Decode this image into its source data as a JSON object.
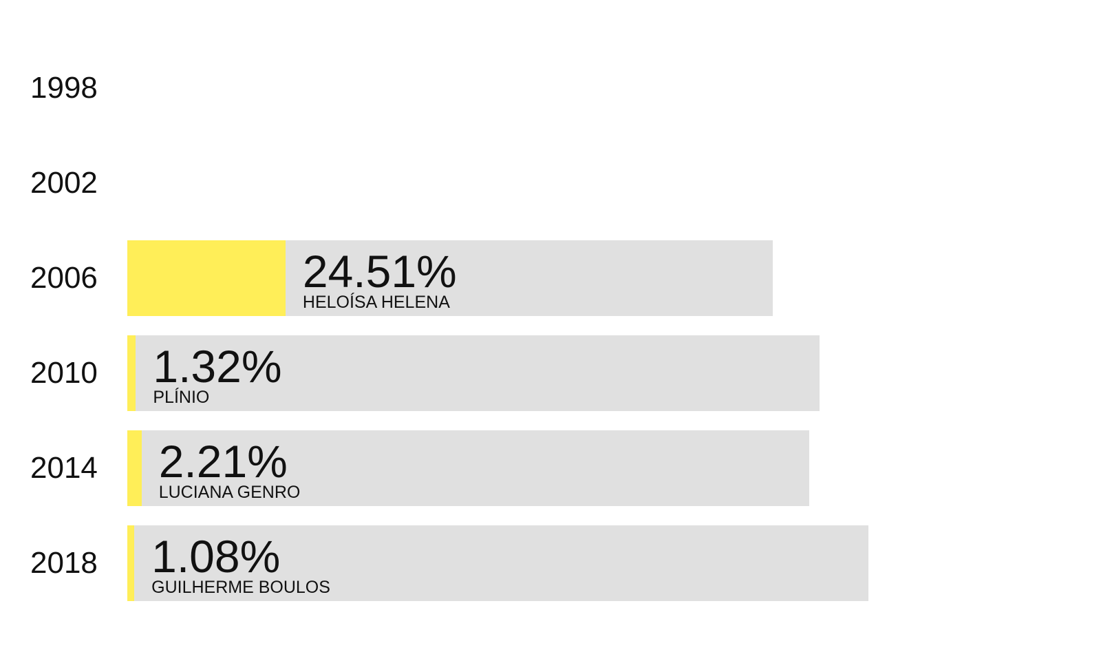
{
  "chart_data": {
    "type": "bar",
    "orientation": "horizontal",
    "categories": [
      "1998",
      "2002",
      "2006",
      "2010",
      "2014",
      "2018"
    ],
    "values": [
      null,
      null,
      24.51,
      1.32,
      2.21,
      1.08
    ],
    "value_labels": [
      "",
      "",
      "24.51%",
      "1.32%",
      "2.21%",
      "1.08%"
    ],
    "candidates": [
      "",
      "",
      "HELOÍSA HELENA",
      "PLÍNIO",
      "LUCIANA GENRO",
      "GUILHERME BOULOS"
    ],
    "track_totals": [
      null,
      null,
      100,
      107.2,
      105.6,
      114.8
    ],
    "xlim": [
      0,
      100
    ],
    "title": "",
    "xlabel": "",
    "ylabel": "",
    "grid": false,
    "legend": "none",
    "colors": {
      "bar": "#ffee58",
      "track": "#e0e0e0",
      "text": "#111111"
    }
  }
}
